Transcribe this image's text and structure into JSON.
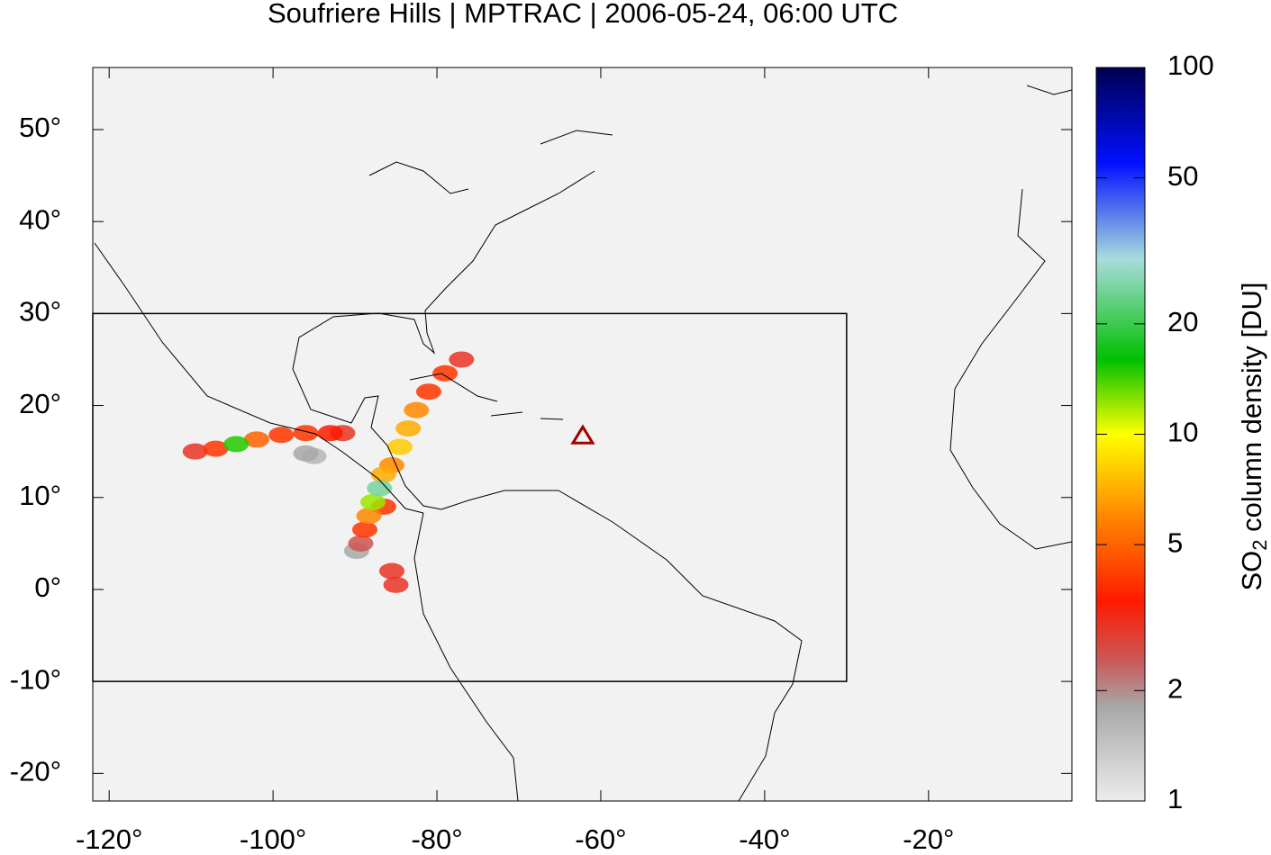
{
  "map": {
    "title": "Soufriere Hills | MPTRAC | 2006-05-24, 06:00 UTC",
    "xlim": [
      -122,
      -2.5
    ],
    "ylim": [
      -23,
      56.75
    ],
    "xticks": [
      {
        "value": -120,
        "label": "-120°"
      },
      {
        "value": -100,
        "label": "-100°"
      },
      {
        "value": -80,
        "label": "-80°"
      },
      {
        "value": -60,
        "label": "-60°"
      },
      {
        "value": -40,
        "label": "-40°"
      },
      {
        "value": -20,
        "label": "-20°"
      }
    ],
    "yticks": [
      {
        "value": -20,
        "label": "-20°"
      },
      {
        "value": -10,
        "label": "-10°"
      },
      {
        "value": 0,
        "label": "0°"
      },
      {
        "value": 10,
        "label": "10°"
      },
      {
        "value": 20,
        "label": "20°"
      },
      {
        "value": 30,
        "label": "30°"
      },
      {
        "value": 40,
        "label": "40°"
      },
      {
        "value": 50,
        "label": "50°"
      }
    ],
    "box": {
      "lon": [
        -122,
        -30
      ],
      "lat": [
        -10,
        30
      ]
    },
    "volcano": {
      "lon": -62.2,
      "lat": 16.7,
      "color": "#a00000"
    },
    "colorbar": {
      "label": {
        "main": "SO",
        "sub": "2",
        "rest": " column density [DU]"
      },
      "clim": [
        1,
        100
      ],
      "log": true,
      "ticks": [
        1,
        2,
        5,
        10,
        20,
        50,
        100
      ],
      "colormap": [
        [
          1,
          "#ececec"
        ],
        [
          1.8,
          "#a8a8a8"
        ],
        [
          2.4,
          "#c85a5a"
        ],
        [
          3.5,
          "#ff1a00"
        ],
        [
          6,
          "#ff8800"
        ],
        [
          10,
          "#ffff00"
        ],
        [
          16,
          "#00c000"
        ],
        [
          30,
          "#a8dcdc"
        ],
        [
          55,
          "#0010ff"
        ],
        [
          100,
          "#000050"
        ]
      ]
    },
    "plume": [
      [
        -109.5,
        15.0,
        3
      ],
      [
        -107,
        15.3,
        4
      ],
      [
        -104.5,
        15.8,
        15
      ],
      [
        -102,
        16.3,
        5
      ],
      [
        -99,
        16.8,
        4
      ],
      [
        -96,
        17.0,
        4
      ],
      [
        -93,
        17.0,
        3.5
      ],
      [
        -91.5,
        17.0,
        3
      ],
      [
        -96,
        14.8,
        1.8
      ],
      [
        -95,
        14.5,
        1.6
      ],
      [
        -77,
        25,
        3
      ],
      [
        -79,
        23.5,
        4
      ],
      [
        -81,
        21.5,
        4
      ],
      [
        -82.5,
        19.5,
        6
      ],
      [
        -83.5,
        17.5,
        7
      ],
      [
        -84.5,
        15.5,
        8
      ],
      [
        -85.5,
        13.5,
        6
      ],
      [
        -86.5,
        12.5,
        7
      ],
      [
        -86.5,
        9,
        4
      ],
      [
        -87.0,
        11.0,
        25
      ],
      [
        -87.8,
        9.5,
        12
      ],
      [
        -88.3,
        8,
        6
      ],
      [
        -88.8,
        6.5,
        4
      ],
      [
        -89.3,
        5,
        2.5
      ],
      [
        -89.8,
        4.2,
        1.8
      ],
      [
        -85.5,
        2,
        3
      ],
      [
        -85,
        0.5,
        3
      ]
    ]
  }
}
